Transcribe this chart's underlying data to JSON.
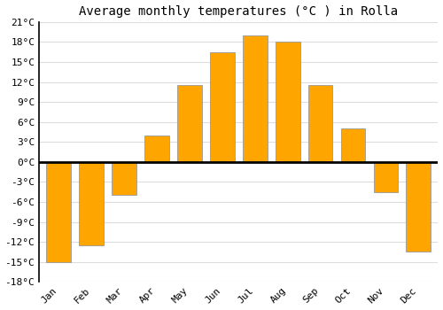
{
  "title": "Average monthly temperatures (°C ) in Rolla",
  "months": [
    "Jan",
    "Feb",
    "Mar",
    "Apr",
    "May",
    "Jun",
    "Jul",
    "Aug",
    "Sep",
    "Oct",
    "Nov",
    "Dec"
  ],
  "values": [
    -15,
    -12.5,
    -5,
    4,
    11.5,
    16.5,
    19,
    18,
    11.5,
    5,
    -4.5,
    -13.5
  ],
  "bar_color": "#FFA500",
  "bar_edge_color": "#999999",
  "ylim": [
    -18,
    21
  ],
  "yticks": [
    -18,
    -15,
    -12,
    -9,
    -6,
    -3,
    0,
    3,
    6,
    9,
    12,
    15,
    18,
    21
  ],
  "ytick_labels": [
    "-18°C",
    "-15°C",
    "-12°C",
    "-9°C",
    "-6°C",
    "-3°C",
    "0°C",
    "3°C",
    "6°C",
    "9°C",
    "12°C",
    "15°C",
    "18°C",
    "21°C"
  ],
  "background_color": "#ffffff",
  "plot_bg_color": "#ffffff",
  "grid_color": "#dddddd",
  "zero_line_color": "#000000",
  "title_fontsize": 10,
  "tick_fontsize": 8,
  "bar_width": 0.75,
  "left_margin_color": "#ffffff"
}
